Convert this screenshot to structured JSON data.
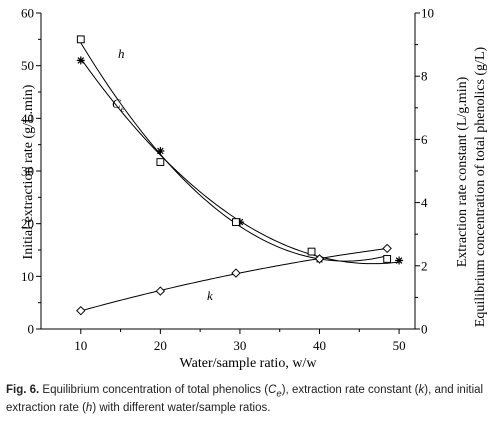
{
  "chart_data": {
    "type": "line",
    "x": [
      10,
      20,
      30,
      40,
      50
    ],
    "xlabel": "Water/sample ratio, w/w",
    "xticks": [
      "10",
      "20",
      "30",
      "40",
      "50"
    ],
    "xlim": [
      5,
      52
    ],
    "left_axis": {
      "label": "Initial extraction rate (g/L.min)",
      "ticks": [
        "0",
        "10",
        "20",
        "30",
        "40",
        "50",
        "60"
      ],
      "ylim": [
        0,
        60
      ]
    },
    "right_axis": {
      "label_inner": "Extraction rate constant (L/g.min)",
      "label_outer": "Equilibrium concentration of total phenolics (g/L)",
      "ticks": [
        "0",
        "2",
        "4",
        "6",
        "8",
        "10"
      ],
      "ylim": [
        0,
        10
      ]
    },
    "series": [
      {
        "name": "h",
        "axis": "left",
        "marker": "asterisk",
        "points": [
          [
            10,
            51.0
          ],
          [
            20,
            33.8
          ],
          [
            30,
            20.3
          ],
          [
            40,
            13.2
          ],
          [
            50,
            13.0
          ]
        ]
      },
      {
        "name": "Ce",
        "axis": "left",
        "marker": "square",
        "points": [
          [
            10,
            55.0
          ],
          [
            20,
            31.7
          ],
          [
            29.5,
            20.3
          ],
          [
            39,
            14.7
          ],
          [
            48.5,
            13.3
          ]
        ]
      },
      {
        "name": "k",
        "axis": "right",
        "marker": "diamond",
        "points": [
          [
            10,
            0.58
          ],
          [
            20,
            1.2
          ],
          [
            29.5,
            1.77
          ],
          [
            40,
            2.22
          ],
          [
            48.5,
            2.55
          ]
        ]
      }
    ],
    "annotations": [
      "h",
      "C",
      "e",
      "k"
    ],
    "grid": false,
    "legend": "none"
  },
  "caption": {
    "label": "Fig. 6.",
    "part1": " Equilibrium concentration of total phenolics (",
    "ce_c": "C",
    "ce_e": "e",
    "part2": "), extraction rate constant (",
    "k": "k",
    "part3": "), and initial extraction rate (",
    "h": "h",
    "part4": ") with different water/sample ratios."
  }
}
